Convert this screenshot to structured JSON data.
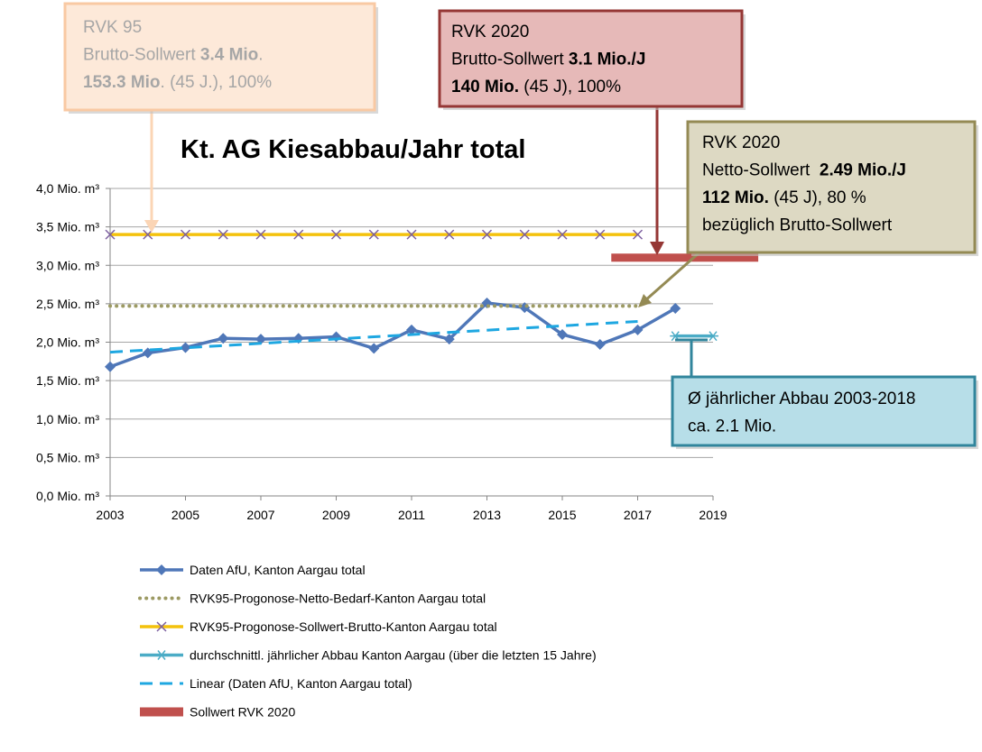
{
  "chart_data": {
    "type": "line",
    "title": "Kt. AG Kiesabbau/Jahr total",
    "xlim": [
      2003,
      2019
    ],
    "xticks": [
      2003,
      2005,
      2007,
      2009,
      2011,
      2013,
      2015,
      2017,
      2019
    ],
    "ylim": [
      0,
      4
    ],
    "yticks": [
      {
        "value": 0,
        "label": "0,0 Mio. m³"
      },
      {
        "value": 0.5,
        "label": "0,5 Mio. m³"
      },
      {
        "value": 1,
        "label": "1,0 Mio. m³"
      },
      {
        "value": 1.5,
        "label": "1,5 Mio. m³"
      },
      {
        "value": 2,
        "label": "2,0 Mio. m³"
      },
      {
        "value": 2.5,
        "label": "2,5 Mio. m³"
      },
      {
        "value": 3,
        "label": "3,0 Mio. m³"
      },
      {
        "value": 3.5,
        "label": "3,5 Mio. m³"
      },
      {
        "value": 4,
        "label": "4,0 Mio. m³"
      }
    ],
    "grid": true,
    "series": [
      {
        "name": "Daten AfU, Kanton Aargau total",
        "color": "#4f77b8",
        "line": "solid",
        "marker": "diamond",
        "x": [
          2003,
          2004,
          2005,
          2006,
          2007,
          2008,
          2009,
          2010,
          2011,
          2012,
          2013,
          2014,
          2015,
          2016,
          2017,
          2018
        ],
        "values": [
          1.68,
          1.86,
          1.93,
          2.05,
          2.04,
          2.05,
          2.07,
          1.92,
          2.16,
          2.04,
          2.51,
          2.45,
          2.1,
          1.97,
          2.16,
          2.44
        ]
      },
      {
        "name": "RVK95-Progonose-Netto-Bedarf-Kanton Aargau total",
        "color": "#9c9a63",
        "line": "dotted",
        "marker": null,
        "x": [
          2003,
          2017
        ],
        "values": [
          2.47,
          2.47
        ]
      },
      {
        "name": "RVK95-Progonose-Sollwert-Brutto-Kanton Aargau total",
        "color": "#f4c20d",
        "marker_color": "#7d60a0",
        "line": "solid",
        "marker": "x",
        "x": [
          2003,
          2004,
          2005,
          2006,
          2007,
          2008,
          2009,
          2010,
          2011,
          2012,
          2013,
          2014,
          2015,
          2016,
          2017
        ],
        "values": [
          3.4,
          3.4,
          3.4,
          3.4,
          3.4,
          3.4,
          3.4,
          3.4,
          3.4,
          3.4,
          3.4,
          3.4,
          3.4,
          3.4,
          3.4
        ]
      },
      {
        "name": "durchschnittl. jährlicher Abbau  Kanton Aargau (über die letzten 15 Jahre)",
        "color": "#4bacc6",
        "line": "solid",
        "marker": "asterisk",
        "x": [
          2018,
          2019
        ],
        "values": [
          2.08,
          2.08
        ]
      },
      {
        "name": "Linear (Daten AfU, Kanton Aargau total)",
        "color": "#1ea7e1",
        "line": "dashed",
        "marker": null,
        "x": [
          2003,
          2017
        ],
        "values": [
          1.87,
          2.27
        ]
      },
      {
        "name": "Sollwert RVK 2020",
        "color": "#c0504d",
        "line": "thick",
        "marker": null,
        "x": [
          2016.3,
          2020.2
        ],
        "values": [
          3.1,
          3.1
        ]
      }
    ],
    "annotations": [
      {
        "lines": [
          [
            {
              "text": "RVK 95"
            }
          ],
          [
            {
              "text": "Brutto-Sollwert "
            },
            {
              "text": "3.4 Mio",
              "bold": true
            },
            {
              "text": "."
            }
          ],
          [
            {
              "text": "153.3 Mio",
              "bold": true
            },
            {
              "text": ". (45 J.), 100%"
            }
          ]
        ]
      },
      {
        "lines": [
          [
            {
              "text": "RVK 2020"
            }
          ],
          [
            {
              "text": "Brutto-Sollwert "
            },
            {
              "text": "3.1 Mio./J",
              "bold": true
            }
          ],
          [
            {
              "text": "140 Mio.",
              "bold": true
            },
            {
              "text": " (45 J), 100%"
            }
          ]
        ]
      },
      {
        "lines": [
          [
            {
              "text": "RVK 2020"
            }
          ],
          [
            {
              "text": "Netto-Sollwert  "
            },
            {
              "text": "2.49 Mio./J",
              "bold": true
            }
          ],
          [
            {
              "text": "112 Mio.",
              "bold": true
            },
            {
              "text": " (45 J), 80 %"
            }
          ],
          [
            {
              "text": "bezüglich Brutto-Sollwert"
            }
          ]
        ]
      },
      {
        "lines": [
          [
            {
              "text": "Ø jährlicher Abbau 2003-2018"
            }
          ],
          [
            {
              "text": "ca. 2.1 Mio."
            }
          ]
        ]
      }
    ]
  }
}
